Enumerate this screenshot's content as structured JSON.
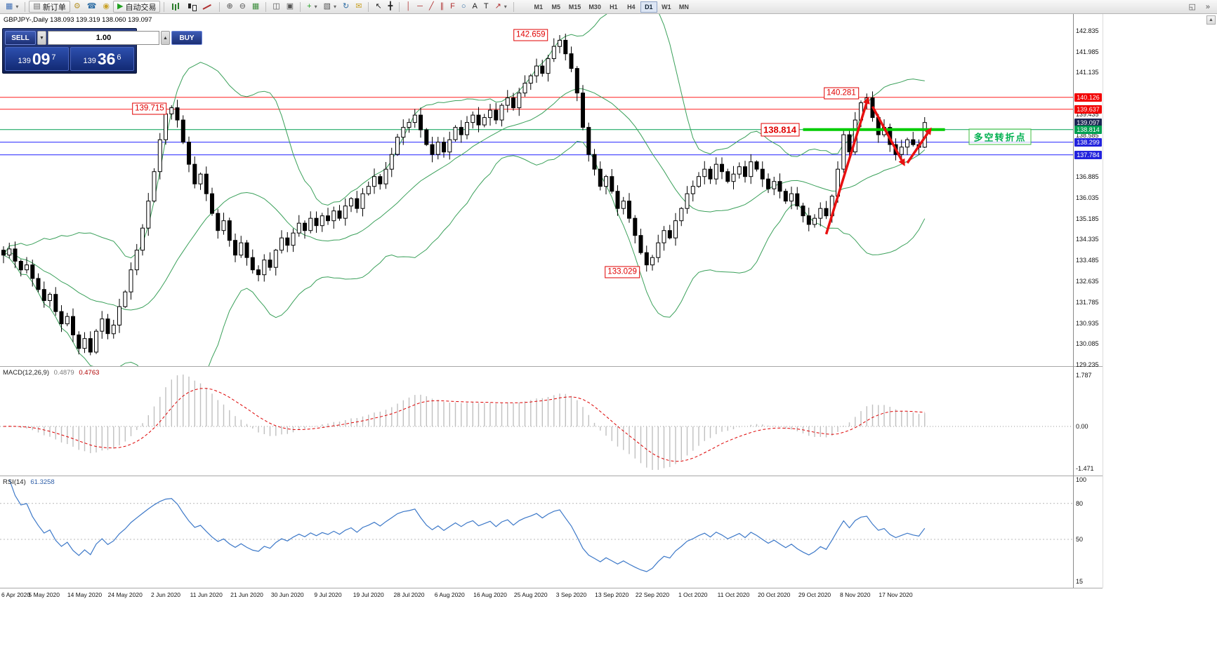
{
  "window": {
    "symbol_title": "GBPJPY-,Daily 138.093 139.319 138.060 139.097"
  },
  "toolbar": {
    "items": [
      {
        "name": "new-chart-icon",
        "glyph": "▦",
        "color": "#3f6fb5",
        "caret": true
      },
      {
        "sep": true
      },
      {
        "name": "new-order-button",
        "glyph": "▤",
        "color": "#6a6a6a",
        "label": "新订单"
      },
      {
        "name": "expert-advisors-icon",
        "glyph": "⚙",
        "color": "#b8962e"
      },
      {
        "name": "metaquotes-id-icon",
        "glyph": "☎",
        "color": "#2e6da4"
      },
      {
        "name": "community-icon",
        "glyph": "◉",
        "color": "#c9a227"
      },
      {
        "name": "autotrading-button",
        "glyph": "▶",
        "color": "#21a121",
        "label": "自动交易"
      },
      {
        "sep": true
      },
      {
        "name": "bar-chart-icon",
        "css": "ci-bars"
      },
      {
        "name": "candlestick-chart-icon",
        "css": "ci-candles"
      },
      {
        "name": "line-chart-icon",
        "css": "ci-line"
      },
      {
        "sep": true
      },
      {
        "name": "zoom-in-icon",
        "glyph": "⊕"
      },
      {
        "name": "zoom-out-icon",
        "glyph": "⊖"
      },
      {
        "name": "grid-icon",
        "glyph": "▦",
        "color": "#3f8f3f"
      },
      {
        "sep": true
      },
      {
        "name": "tile-windows-icon",
        "glyph": "◫"
      },
      {
        "name": "cascade-windows-icon",
        "glyph": "▣"
      },
      {
        "sep": true
      },
      {
        "name": "add-indicator-icon",
        "glyph": "+",
        "color": "#21a121",
        "caret": true
      },
      {
        "name": "templates-icon",
        "glyph": "▧",
        "caret": true
      },
      {
        "name": "refresh-icon",
        "glyph": "↻",
        "color": "#2e6da4"
      },
      {
        "name": "mail-icon",
        "glyph": "✉",
        "color": "#c9a227"
      },
      {
        "sep": true
      },
      {
        "name": "cursor-icon",
        "glyph": "↖",
        "color": "#222"
      },
      {
        "name": "crosshair-icon",
        "glyph": "╋",
        "color": "#222"
      },
      {
        "sep": true
      },
      {
        "name": "vertical-line-icon",
        "glyph": "│",
        "color": "#b03030"
      },
      {
        "name": "horizontal-line-icon",
        "glyph": "─",
        "color": "#b03030"
      },
      {
        "name": "trendline-icon",
        "glyph": "╱",
        "color": "#b03030"
      },
      {
        "name": "channel-icon",
        "glyph": "∥",
        "color": "#b03030"
      },
      {
        "name": "fibonacci-icon",
        "glyph": "F",
        "color": "#b03030"
      },
      {
        "name": "shapes-icon",
        "glyph": "○",
        "color": "#2e6da4"
      },
      {
        "name": "text-icon",
        "glyph": "A",
        "color": "#222"
      },
      {
        "name": "label-icon",
        "glyph": "T",
        "color": "#222"
      },
      {
        "name": "arrows-icon",
        "glyph": "↗",
        "color": "#b03030",
        "caret": true
      },
      {
        "sep": true
      }
    ],
    "right_items": [
      {
        "name": "docking-icon",
        "glyph": "◱"
      },
      {
        "name": "overflow-icon",
        "glyph": "»"
      }
    ],
    "timeframes": {
      "items": [
        "M1",
        "M5",
        "M15",
        "M30",
        "H1",
        "H4",
        "D1",
        "W1",
        "MN"
      ],
      "active": "D1"
    }
  },
  "one_click": {
    "sell_label": "SELL",
    "buy_label": "BUY",
    "volume": "1.00",
    "sell_price": {
      "prefix": "139",
      "big": "09",
      "sup": "7"
    },
    "buy_price": {
      "prefix": "139",
      "big": "36",
      "sup": "6"
    }
  },
  "chart_data": [
    {
      "type": "candlestick",
      "title": "GBPJPY-,Daily",
      "symbol": "GBPJPY",
      "timeframe": "Daily",
      "last_ohlc": {
        "open": 138.093,
        "high": 139.319,
        "low": 138.06,
        "close": 139.097
      },
      "x_labels": [
        "6 Apr 2020",
        "5 May 2020",
        "14 May 2020",
        "24 May 2020",
        "2 Jun 2020",
        "11 Jun 2020",
        "21 Jun 2020",
        "30 Jun 2020",
        "9 Jul 2020",
        "19 Jul 2020",
        "28 Jul 2020",
        "6 Aug 2020",
        "16 Aug 2020",
        "25 Aug 2020",
        "3 Sep 2020",
        "13 Sep 2020",
        "22 Sep 2020",
        "1 Oct 2020",
        "11 Oct 2020",
        "20 Oct 2020",
        "29 Oct 2020",
        "8 Nov 2020",
        "17 Nov 2020"
      ],
      "label_stride": 7,
      "closes": [
        133.7,
        133.95,
        133.45,
        133.1,
        133.3,
        132.75,
        132.3,
        131.85,
        132.1,
        131.4,
        130.9,
        131.2,
        130.45,
        129.9,
        130.3,
        129.75,
        130.6,
        131.1,
        130.5,
        130.85,
        131.6,
        132.2,
        133.1,
        133.9,
        134.8,
        135.9,
        137.1,
        138.4,
        139.45,
        139.7,
        139.2,
        138.3,
        137.4,
        136.6,
        137.0,
        136.2,
        135.4,
        134.7,
        135.1,
        134.3,
        133.7,
        134.2,
        133.6,
        133.1,
        132.9,
        133.5,
        133.2,
        133.9,
        134.4,
        134.1,
        134.6,
        135.0,
        134.7,
        135.2,
        134.9,
        135.3,
        135.1,
        135.5,
        135.2,
        135.7,
        136.0,
        135.6,
        136.2,
        136.5,
        136.9,
        136.6,
        137.2,
        137.8,
        138.5,
        138.9,
        139.1,
        139.4,
        138.8,
        138.2,
        137.8,
        138.3,
        137.9,
        138.4,
        138.9,
        138.6,
        139.1,
        139.4,
        139.0,
        139.3,
        139.6,
        139.2,
        139.8,
        140.1,
        139.7,
        140.3,
        140.7,
        141.0,
        141.4,
        141.1,
        141.7,
        142.2,
        142.45,
        141.9,
        141.3,
        140.3,
        138.9,
        137.8,
        137.2,
        136.5,
        136.9,
        136.3,
        135.6,
        135.9,
        135.2,
        134.5,
        133.8,
        133.3,
        133.6,
        134.2,
        134.7,
        134.4,
        135.1,
        135.6,
        136.2,
        136.5,
        136.9,
        137.2,
        136.8,
        137.4,
        137.1,
        136.7,
        137.0,
        137.3,
        136.9,
        137.5,
        137.2,
        136.8,
        136.4,
        136.7,
        136.3,
        135.9,
        136.2,
        135.7,
        135.3,
        134.95,
        135.2,
        135.6,
        135.3,
        136.1,
        137.2,
        138.6,
        137.9,
        139.2,
        139.9,
        140.1,
        139.3,
        138.6,
        138.9,
        138.2,
        137.8,
        138.1,
        138.4,
        138.2,
        138.09,
        139.097
      ],
      "wick_overrides": {
        "15": {
          "low": 129.62
        },
        "96": {
          "high": 142.659
        },
        "111": {
          "low": 133.029
        },
        "149": {
          "high": 140.281
        }
      },
      "bollinger": {
        "period": 20,
        "deviation": 2,
        "color": "#3aa05a"
      },
      "y_axis": {
        "min_visible": 129.235,
        "max_visible": 142.835,
        "tick_step": 0.85,
        "ticks": [
          142.835,
          141.985,
          141.135,
          139.435,
          138.585,
          136.885,
          136.035,
          135.185,
          134.335,
          133.485,
          132.635,
          131.785,
          130.935,
          130.085,
          129.235
        ],
        "badges": [
          {
            "price": 140.126,
            "color": "red"
          },
          {
            "price": 139.637,
            "color": "red"
          },
          {
            "price": 139.097,
            "color": "current"
          },
          {
            "price": 138.814,
            "color": "green"
          },
          {
            "price": 138.299,
            "color": "blue"
          },
          {
            "price": 137.784,
            "color": "blue"
          }
        ]
      },
      "h_lines": [
        {
          "price": 140.126,
          "color": "#ff2121",
          "w": 1
        },
        {
          "price": 139.637,
          "color": "#ff2121",
          "w": 1
        },
        {
          "price": 138.814,
          "color": "#00a050",
          "w": 1
        },
        {
          "price": 138.299,
          "color": "#2121ff",
          "w": 1
        },
        {
          "price": 137.784,
          "color": "#2121ff",
          "w": 1
        }
      ],
      "segments": [
        {
          "price": 138.814,
          "bar1": 138,
          "bar2": 162.5,
          "color": "#00cc00",
          "w": 4
        }
      ],
      "callouts": [
        {
          "text": "142.659",
          "bar": 91,
          "price": 142.65
        },
        {
          "text": "139.715",
          "bar": 25.2,
          "price": 139.66
        },
        {
          "text": "140.281",
          "bar": 144.6,
          "price": 140.28
        },
        {
          "text": "138.814",
          "bar": 134,
          "price": 138.8,
          "big": true
        },
        {
          "text": "133.029",
          "bar": 106.8,
          "price": 133.0
        }
      ],
      "text_labels": [
        {
          "text": "多空转折点",
          "bar": 172,
          "price": 138.52,
          "color": "#00b050"
        }
      ],
      "arrows": [
        {
          "bar1": 142,
          "price1": 134.55,
          "bar2": 149.3,
          "price2": 140.15
        },
        {
          "bar1": 150,
          "price1": 139.75,
          "bar2": 155.6,
          "price2": 137.32
        },
        {
          "bar1": 156,
          "price1": 137.45,
          "bar2": 160.2,
          "price2": 138.9
        }
      ]
    },
    {
      "type": "macd_panel",
      "derived_from_closes": true,
      "params": [
        12,
        26,
        9
      ],
      "display": {
        "title": "MACD(12,26,9)",
        "value1": "0.4879",
        "value2": "0.4763",
        "scale": [
          {
            "t": "1.787",
            "v": 1.787
          },
          {
            "t": "0.00",
            "v": 0
          },
          {
            "t": "-1.471",
            "v": -1.471
          }
        ]
      },
      "colors": {
        "histogram": "#c0c0c0",
        "signal": "#dd0000"
      }
    },
    {
      "type": "rsi_panel",
      "derived_from_closes": true,
      "period": 14,
      "display": {
        "title": "RSI(14)",
        "value": "61.3258",
        "scale": [
          {
            "t": "100",
            "v": 100
          },
          {
            "t": "80",
            "v": 80
          },
          {
            "t": "50",
            "v": 50
          },
          {
            "t": "15",
            "v": 15
          }
        ]
      },
      "levels": [
        80,
        50
      ],
      "color": "#3c78c8"
    }
  ]
}
